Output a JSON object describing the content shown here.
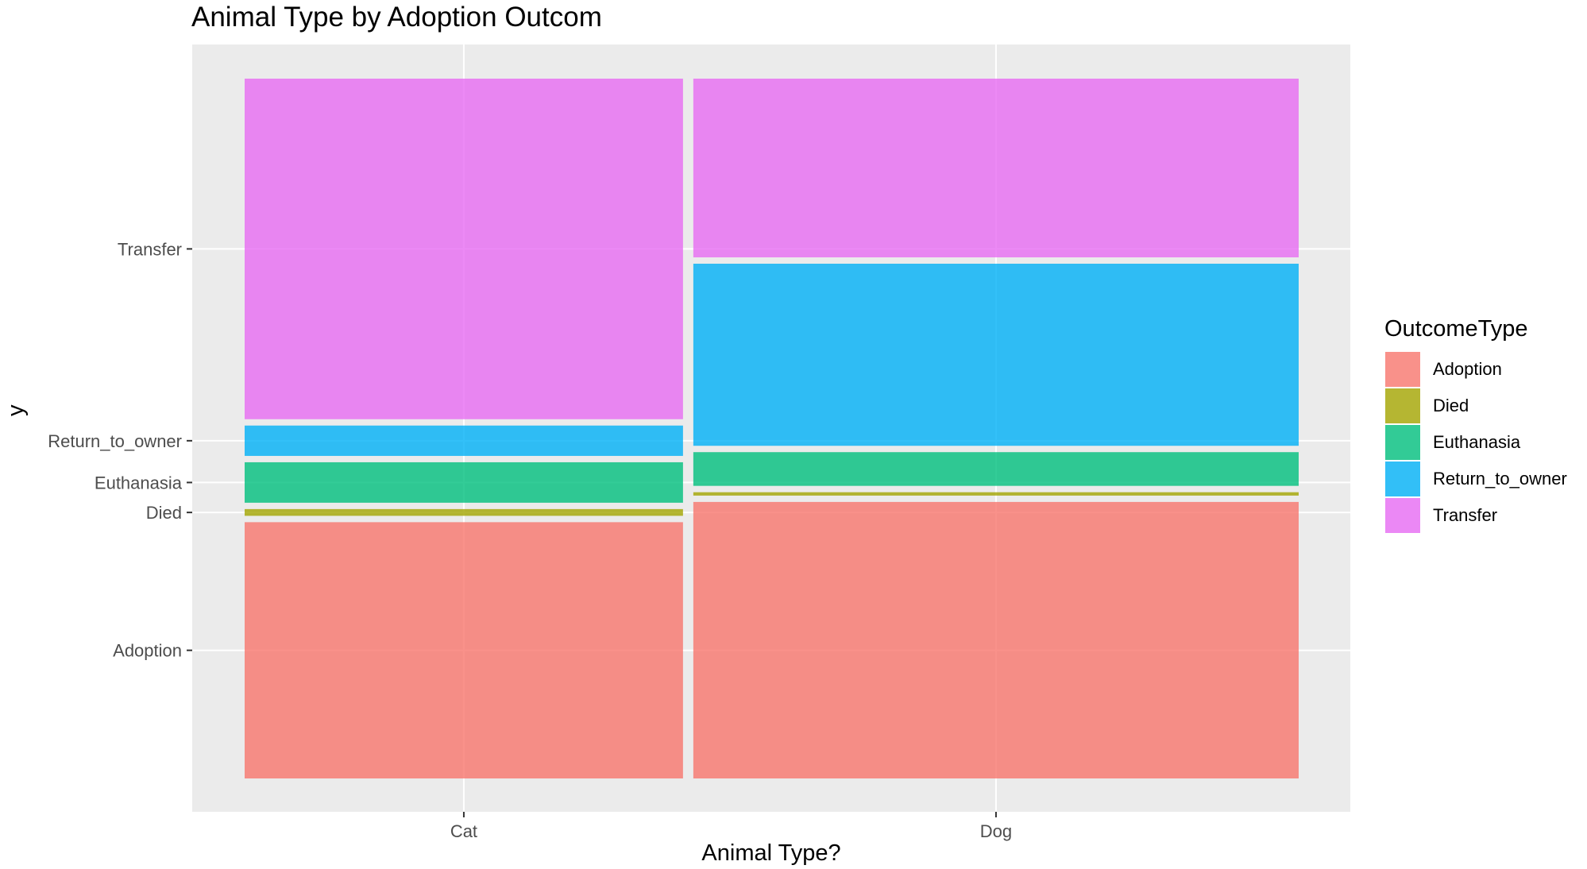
{
  "chart_data": {
    "type": "mosaic",
    "title": "Animal Type by Adoption Outcom",
    "xlabel": "Animal Type?",
    "ylabel": "y",
    "categories": [
      "Cat",
      "Dog"
    ],
    "category_widths": [
      0.42,
      0.58
    ],
    "outcomes": [
      "Adoption",
      "Died",
      "Euthanasia",
      "Return_to_owner",
      "Transfer"
    ],
    "series": [
      {
        "name": "Adoption",
        "color": "#F8766D",
        "values": [
          0.38,
          0.41
        ]
      },
      {
        "name": "Died",
        "color": "#A3A500",
        "values": [
          0.01,
          0.005
        ]
      },
      {
        "name": "Euthanasia",
        "color": "#00BF7D",
        "values": [
          0.06,
          0.05
        ]
      },
      {
        "name": "Return_to_owner",
        "color": "#00B0F6",
        "values": [
          0.045,
          0.27
        ]
      },
      {
        "name": "Transfer",
        "color": "#E76BF3",
        "values": [
          0.505,
          0.265
        ]
      }
    ],
    "y_tick_labels": [
      "Adoption",
      "Died",
      "Euthanasia",
      "Return_to_owner",
      "Transfer"
    ],
    "x_tick_labels": [
      "Cat",
      "Dog"
    ],
    "grid": true,
    "legend": {
      "title": "OutcomeType",
      "position": "right"
    }
  }
}
